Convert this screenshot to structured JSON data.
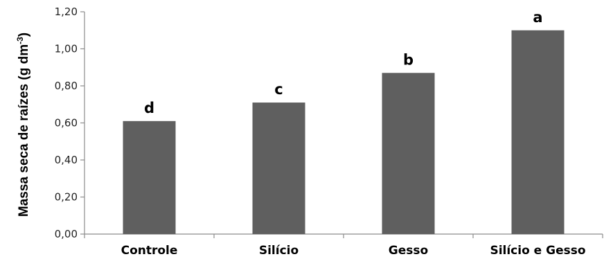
{
  "chart_data": {
    "type": "bar",
    "categories": [
      "Controle",
      "Silício",
      "Gesso",
      "Silício e Gesso"
    ],
    "values": [
      0.61,
      0.71,
      0.87,
      1.1
    ],
    "data_labels": [
      "d",
      "c",
      "b",
      "a"
    ],
    "ylabel": "Massa seca de raízes (g dm",
    "ylabel_superscript": "-3",
    "ylabel_close": ")",
    "ylim": [
      0,
      1.2
    ],
    "y_ticks": [
      "0,00",
      "0,20",
      "0,40",
      "0,60",
      "0,80",
      "1,00",
      "1,20"
    ],
    "grid": false,
    "legend": "none",
    "bar_color": "#5f5f5f",
    "axis_color": "#8c8c8c"
  }
}
